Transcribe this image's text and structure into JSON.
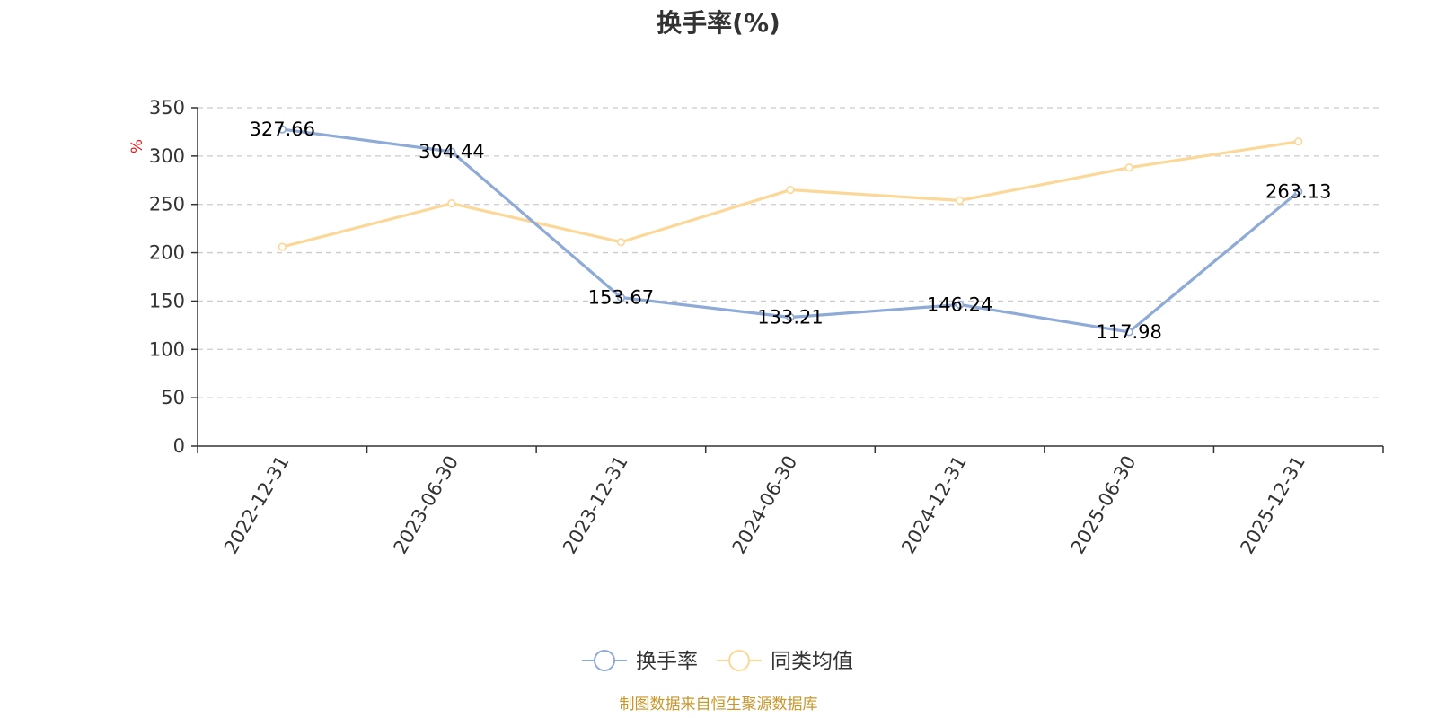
{
  "chart_data": {
    "type": "line",
    "title": "换手率(%)",
    "ylabel": "%",
    "ylim": [
      0,
      350
    ],
    "yticks": [
      0,
      50,
      100,
      150,
      200,
      250,
      300,
      350
    ],
    "grid": true,
    "legend_position": "bottom",
    "categories": [
      "2022-12-31",
      "2023-06-30",
      "2023-12-31",
      "2024-06-30",
      "2024-12-31",
      "2025-06-30",
      "2025-12-31"
    ],
    "series": [
      {
        "name": "换手率",
        "color": "#8eaad6",
        "values": [
          327.66,
          304.44,
          153.67,
          133.21,
          146.24,
          117.98,
          263.13
        ],
        "labels": [
          "327.66",
          "304.44",
          "153.67",
          "133.21",
          "146.24",
          "117.98",
          "263.13"
        ]
      },
      {
        "name": "同类均值",
        "color": "#fbd898",
        "values": [
          206,
          251,
          211,
          265,
          254,
          288,
          315
        ]
      }
    ]
  },
  "source": "制图数据来自恒生聚源数据库"
}
